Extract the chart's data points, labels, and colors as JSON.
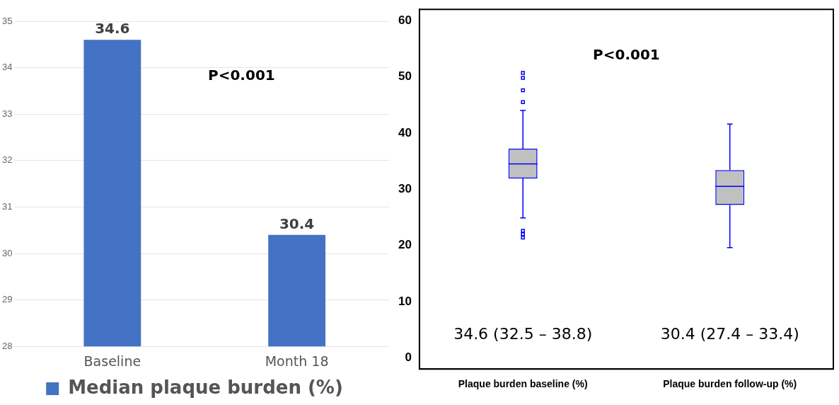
{
  "chart_data": [
    {
      "type": "bar",
      "categories": [
        "Baseline",
        "Month 18"
      ],
      "series": [
        {
          "name": "Median plaque burden (%)",
          "color": "#4472c4",
          "values": [
            34.6,
            30.4
          ]
        }
      ],
      "ylim": [
        28,
        35
      ],
      "yticks": [
        28,
        29,
        30,
        31,
        32,
        33,
        34,
        35
      ],
      "grid": "y",
      "legend": "bottom",
      "data_labels": true,
      "annotations": [
        "P<0.001"
      ]
    },
    {
      "type": "box",
      "categories": [
        "Plaque burden baseline (%)",
        "Plaque burden follow-up (%)"
      ],
      "boxes": [
        {
          "low": 24.9,
          "q1": 31.9,
          "median": 34.5,
          "q3": 37.2,
          "high": 44.0,
          "outliers": [
            50.7,
            49.8,
            47.6,
            45.5,
            22.6,
            22.0,
            21.4
          ]
        },
        {
          "low": 19.6,
          "q1": 27.2,
          "median": 30.5,
          "q3": 33.4,
          "high": 41.6
        }
      ],
      "color": "#0000ff",
      "ylim": [
        -2,
        62
      ],
      "yticks": [
        0,
        10,
        20,
        30,
        40,
        50,
        60
      ],
      "grid": false,
      "legend": false,
      "annotations": [
        "P<0.001",
        "34.6 (32.5 – 38.8)",
        "30.4 (27.4 – 33.4)"
      ]
    }
  ]
}
